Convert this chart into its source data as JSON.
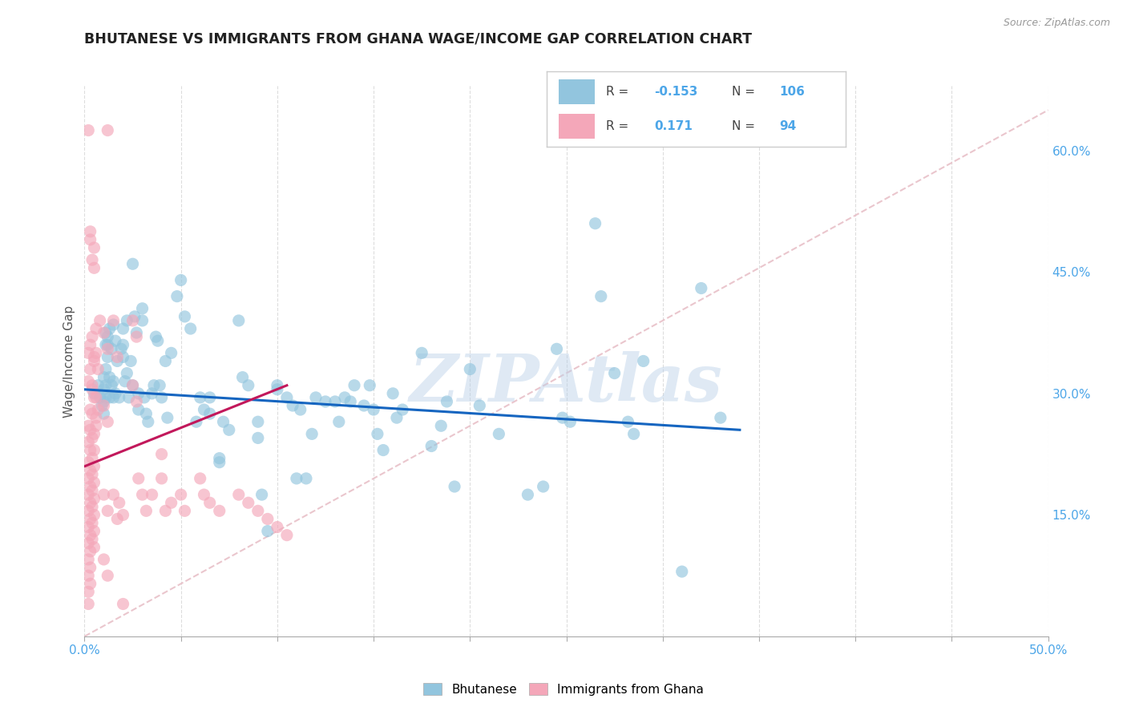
{
  "title": "BHUTANESE VS IMMIGRANTS FROM GHANA WAGE/INCOME GAP CORRELATION CHART",
  "source": "Source: ZipAtlas.com",
  "xlabel_range": [
    0.0,
    0.5
  ],
  "ylabel_range": [
    0.0,
    0.68
  ],
  "x_ticks": [
    0.0,
    0.05,
    0.1,
    0.15,
    0.2,
    0.25,
    0.3,
    0.35,
    0.4,
    0.45,
    0.5
  ],
  "x_labels_shown": [
    0.0,
    0.5
  ],
  "y_ticks": [
    0.15,
    0.3,
    0.45,
    0.6
  ],
  "ylabel": "Wage/Income Gap",
  "legend_entry1_R": "-0.153",
  "legend_entry1_N": "106",
  "legend_entry1_label": "Bhutanese",
  "legend_entry2_R": "0.171",
  "legend_entry2_N": "94",
  "legend_entry2_label": "Immigrants from Ghana",
  "blue_color": "#92c5de",
  "pink_color": "#f4a7b9",
  "trend_blue": "#1565c0",
  "trend_pink": "#c2185b",
  "trend_diag_color": "#e8c0c8",
  "watermark": "ZIPAtlas",
  "background_color": "#ffffff",
  "grid_color": "#dddddd",
  "blue_scatter": [
    [
      0.005,
      0.3
    ],
    [
      0.007,
      0.31
    ],
    [
      0.008,
      0.295
    ],
    [
      0.009,
      0.285
    ],
    [
      0.01,
      0.305
    ],
    [
      0.01,
      0.32
    ],
    [
      0.01,
      0.29
    ],
    [
      0.01,
      0.275
    ],
    [
      0.011,
      0.33
    ],
    [
      0.011,
      0.31
    ],
    [
      0.011,
      0.295
    ],
    [
      0.011,
      0.36
    ],
    [
      0.011,
      0.375
    ],
    [
      0.012,
      0.345
    ],
    [
      0.012,
      0.36
    ],
    [
      0.012,
      0.37
    ],
    [
      0.013,
      0.38
    ],
    [
      0.013,
      0.32
    ],
    [
      0.013,
      0.295
    ],
    [
      0.014,
      0.31
    ],
    [
      0.014,
      0.355
    ],
    [
      0.015,
      0.385
    ],
    [
      0.015,
      0.295
    ],
    [
      0.015,
      0.315
    ],
    [
      0.016,
      0.3
    ],
    [
      0.016,
      0.365
    ],
    [
      0.017,
      0.34
    ],
    [
      0.018,
      0.295
    ],
    [
      0.019,
      0.355
    ],
    [
      0.02,
      0.36
    ],
    [
      0.02,
      0.38
    ],
    [
      0.02,
      0.345
    ],
    [
      0.021,
      0.315
    ],
    [
      0.022,
      0.325
    ],
    [
      0.022,
      0.39
    ],
    [
      0.023,
      0.295
    ],
    [
      0.024,
      0.34
    ],
    [
      0.025,
      0.31
    ],
    [
      0.025,
      0.46
    ],
    [
      0.026,
      0.395
    ],
    [
      0.027,
      0.375
    ],
    [
      0.028,
      0.3
    ],
    [
      0.028,
      0.28
    ],
    [
      0.03,
      0.39
    ],
    [
      0.03,
      0.405
    ],
    [
      0.031,
      0.295
    ],
    [
      0.032,
      0.275
    ],
    [
      0.033,
      0.265
    ],
    [
      0.035,
      0.3
    ],
    [
      0.036,
      0.31
    ],
    [
      0.037,
      0.37
    ],
    [
      0.038,
      0.365
    ],
    [
      0.039,
      0.31
    ],
    [
      0.04,
      0.295
    ],
    [
      0.042,
      0.34
    ],
    [
      0.043,
      0.27
    ],
    [
      0.045,
      0.35
    ],
    [
      0.048,
      0.42
    ],
    [
      0.05,
      0.44
    ],
    [
      0.052,
      0.395
    ],
    [
      0.055,
      0.38
    ],
    [
      0.058,
      0.265
    ],
    [
      0.06,
      0.295
    ],
    [
      0.062,
      0.28
    ],
    [
      0.065,
      0.295
    ],
    [
      0.065,
      0.275
    ],
    [
      0.07,
      0.22
    ],
    [
      0.07,
      0.215
    ],
    [
      0.072,
      0.265
    ],
    [
      0.075,
      0.255
    ],
    [
      0.08,
      0.39
    ],
    [
      0.082,
      0.32
    ],
    [
      0.085,
      0.31
    ],
    [
      0.09,
      0.265
    ],
    [
      0.09,
      0.245
    ],
    [
      0.092,
      0.175
    ],
    [
      0.095,
      0.13
    ],
    [
      0.1,
      0.31
    ],
    [
      0.1,
      0.305
    ],
    [
      0.105,
      0.295
    ],
    [
      0.108,
      0.285
    ],
    [
      0.11,
      0.195
    ],
    [
      0.112,
      0.28
    ],
    [
      0.115,
      0.195
    ],
    [
      0.118,
      0.25
    ],
    [
      0.12,
      0.295
    ],
    [
      0.125,
      0.29
    ],
    [
      0.13,
      0.29
    ],
    [
      0.132,
      0.265
    ],
    [
      0.135,
      0.295
    ],
    [
      0.138,
      0.29
    ],
    [
      0.14,
      0.31
    ],
    [
      0.145,
      0.285
    ],
    [
      0.148,
      0.31
    ],
    [
      0.15,
      0.28
    ],
    [
      0.152,
      0.25
    ],
    [
      0.155,
      0.23
    ],
    [
      0.16,
      0.3
    ],
    [
      0.162,
      0.27
    ],
    [
      0.165,
      0.28
    ],
    [
      0.175,
      0.35
    ],
    [
      0.18,
      0.235
    ],
    [
      0.185,
      0.26
    ],
    [
      0.188,
      0.29
    ],
    [
      0.192,
      0.185
    ],
    [
      0.2,
      0.33
    ],
    [
      0.205,
      0.285
    ],
    [
      0.215,
      0.25
    ],
    [
      0.23,
      0.175
    ],
    [
      0.238,
      0.185
    ],
    [
      0.245,
      0.355
    ],
    [
      0.248,
      0.27
    ],
    [
      0.252,
      0.265
    ],
    [
      0.265,
      0.51
    ],
    [
      0.268,
      0.42
    ],
    [
      0.275,
      0.325
    ],
    [
      0.282,
      0.265
    ],
    [
      0.285,
      0.25
    ],
    [
      0.29,
      0.34
    ],
    [
      0.31,
      0.08
    ],
    [
      0.32,
      0.43
    ],
    [
      0.33,
      0.27
    ]
  ],
  "pink_scatter": [
    [
      0.002,
      0.625
    ],
    [
      0.012,
      0.625
    ],
    [
      0.003,
      0.49
    ],
    [
      0.005,
      0.48
    ],
    [
      0.004,
      0.465
    ],
    [
      0.006,
      0.38
    ],
    [
      0.008,
      0.39
    ],
    [
      0.003,
      0.5
    ],
    [
      0.005,
      0.455
    ],
    [
      0.002,
      0.35
    ],
    [
      0.004,
      0.37
    ],
    [
      0.003,
      0.33
    ],
    [
      0.005,
      0.345
    ],
    [
      0.004,
      0.31
    ],
    [
      0.006,
      0.295
    ],
    [
      0.002,
      0.315
    ],
    [
      0.004,
      0.305
    ],
    [
      0.003,
      0.36
    ],
    [
      0.005,
      0.34
    ],
    [
      0.006,
      0.35
    ],
    [
      0.007,
      0.33
    ],
    [
      0.003,
      0.28
    ],
    [
      0.005,
      0.295
    ],
    [
      0.006,
      0.27
    ],
    [
      0.007,
      0.28
    ],
    [
      0.002,
      0.26
    ],
    [
      0.004,
      0.275
    ],
    [
      0.005,
      0.25
    ],
    [
      0.006,
      0.26
    ],
    [
      0.002,
      0.24
    ],
    [
      0.003,
      0.255
    ],
    [
      0.004,
      0.245
    ],
    [
      0.005,
      0.23
    ],
    [
      0.002,
      0.215
    ],
    [
      0.003,
      0.23
    ],
    [
      0.004,
      0.22
    ],
    [
      0.005,
      0.21
    ],
    [
      0.002,
      0.195
    ],
    [
      0.003,
      0.205
    ],
    [
      0.004,
      0.2
    ],
    [
      0.005,
      0.19
    ],
    [
      0.002,
      0.175
    ],
    [
      0.003,
      0.185
    ],
    [
      0.004,
      0.18
    ],
    [
      0.005,
      0.17
    ],
    [
      0.002,
      0.155
    ],
    [
      0.003,
      0.165
    ],
    [
      0.004,
      0.16
    ],
    [
      0.005,
      0.15
    ],
    [
      0.002,
      0.135
    ],
    [
      0.003,
      0.145
    ],
    [
      0.004,
      0.14
    ],
    [
      0.005,
      0.13
    ],
    [
      0.002,
      0.115
    ],
    [
      0.003,
      0.125
    ],
    [
      0.004,
      0.12
    ],
    [
      0.005,
      0.11
    ],
    [
      0.002,
      0.095
    ],
    [
      0.003,
      0.105
    ],
    [
      0.002,
      0.075
    ],
    [
      0.003,
      0.085
    ],
    [
      0.002,
      0.055
    ],
    [
      0.003,
      0.065
    ],
    [
      0.002,
      0.04
    ],
    [
      0.01,
      0.375
    ],
    [
      0.012,
      0.355
    ],
    [
      0.01,
      0.285
    ],
    [
      0.012,
      0.265
    ],
    [
      0.01,
      0.175
    ],
    [
      0.012,
      0.155
    ],
    [
      0.01,
      0.095
    ],
    [
      0.012,
      0.075
    ],
    [
      0.015,
      0.39
    ],
    [
      0.017,
      0.345
    ],
    [
      0.015,
      0.175
    ],
    [
      0.017,
      0.145
    ],
    [
      0.018,
      0.165
    ],
    [
      0.02,
      0.15
    ],
    [
      0.025,
      0.39
    ],
    [
      0.027,
      0.37
    ],
    [
      0.025,
      0.31
    ],
    [
      0.027,
      0.29
    ],
    [
      0.028,
      0.195
    ],
    [
      0.03,
      0.175
    ],
    [
      0.032,
      0.155
    ],
    [
      0.035,
      0.175
    ],
    [
      0.04,
      0.225
    ],
    [
      0.04,
      0.195
    ],
    [
      0.042,
      0.155
    ],
    [
      0.045,
      0.165
    ],
    [
      0.05,
      0.175
    ],
    [
      0.052,
      0.155
    ],
    [
      0.06,
      0.195
    ],
    [
      0.062,
      0.175
    ],
    [
      0.065,
      0.165
    ],
    [
      0.07,
      0.155
    ],
    [
      0.08,
      0.175
    ],
    [
      0.085,
      0.165
    ],
    [
      0.09,
      0.155
    ],
    [
      0.095,
      0.145
    ],
    [
      0.1,
      0.135
    ],
    [
      0.105,
      0.125
    ],
    [
      0.02,
      0.04
    ]
  ],
  "blue_trend_x": [
    0.0,
    0.34
  ],
  "blue_trend_y": [
    0.305,
    0.255
  ],
  "pink_trend_x": [
    0.0,
    0.105
  ],
  "pink_trend_y": [
    0.21,
    0.31
  ]
}
